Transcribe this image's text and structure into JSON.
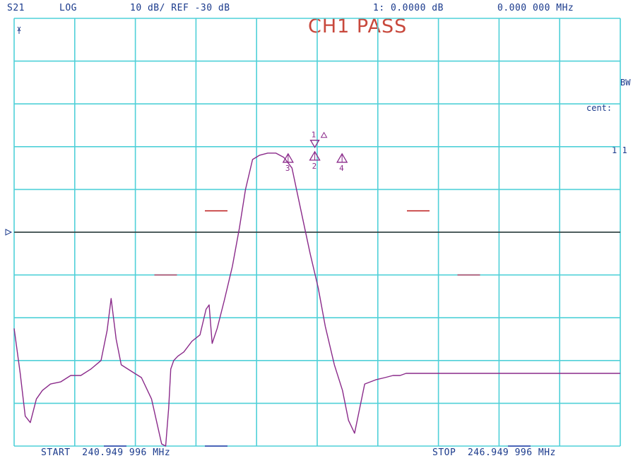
{
  "header": {
    "param": "S21",
    "format": "LOG",
    "scale": "10 dB/ REF -30 dB",
    "marker_readout": "1: 0.0000 dB",
    "marker_freq": "0.000 000 MHz"
  },
  "status": {
    "text": "CH1 PASS",
    "color": "#c8483c"
  },
  "side_labels": {
    "bw": "BW",
    "cent": "cent:",
    "one": "1 1"
  },
  "footer": {
    "start": "START  240.949 996 MHz",
    "stop": "STOP  246.949 996 MHz"
  },
  "markers": [
    {
      "label": "1",
      "x_fraction": 0.496,
      "level_db": -8.5
    },
    {
      "label": "2",
      "x_fraction": 0.496,
      "level_db": -11.5
    },
    {
      "label": "3",
      "x_fraction": 0.452,
      "level_db": -12.0
    },
    {
      "label": "4",
      "x_fraction": 0.541,
      "level_db": -12.0
    }
  ],
  "colors": {
    "grid": "#4fd0d8",
    "trace": "#8a2a8a",
    "reference_line": "#303030",
    "limit_upper": "#c02a2a",
    "limit_lower": "#b04a6a",
    "limit_bottom": "#2a3aa8",
    "text": "#1a3a8c"
  },
  "chart_data": {
    "type": "line",
    "title": "",
    "xlabel": "",
    "ylabel": "",
    "x_range_mhz": [
      240.949996,
      246.949996
    ],
    "reference_level_db": -30,
    "scale_db_per_div": 10,
    "ylim": [
      -80,
      20
    ],
    "grid": true,
    "series": [
      {
        "name": "S21",
        "x": [
          240.95,
          241.01,
          241.06,
          241.11,
          241.17,
          241.23,
          241.31,
          241.41,
          241.51,
          241.61,
          241.71,
          241.81,
          241.87,
          241.91,
          241.96,
          242.01,
          242.11,
          242.21,
          242.31,
          242.41,
          242.45,
          242.48,
          242.5,
          242.53,
          242.57,
          242.63,
          242.71,
          242.79,
          242.85,
          242.88,
          242.91,
          242.96,
          243.03,
          243.11,
          243.18,
          243.24,
          243.31,
          243.38,
          243.46,
          243.54,
          243.62,
          243.7,
          243.79,
          243.88,
          243.96,
          244.03,
          244.12,
          244.2,
          244.26,
          244.32,
          244.42,
          244.53,
          244.62,
          244.7,
          244.77,
          244.83,
          244.87,
          244.9,
          244.95,
          245.05,
          245.15,
          245.35,
          245.55,
          245.75,
          245.95,
          246.15,
          246.35,
          246.55,
          246.75,
          246.949
        ],
        "y": [
          -52.5,
          -63.0,
          -73.0,
          -74.5,
          -69.0,
          -67.0,
          -65.5,
          -65.0,
          -63.5,
          -63.5,
          -62.0,
          -60.0,
          -53.0,
          -45.5,
          -55.0,
          -61.0,
          -62.5,
          -64.0,
          -69.0,
          -79.5,
          -80.0,
          -71.0,
          -62.0,
          -60.0,
          -59.0,
          -58.0,
          -55.5,
          -54.0,
          -48.0,
          -47.0,
          -56.0,
          -52.5,
          -46.0,
          -38.0,
          -29.0,
          -20.0,
          -13.0,
          -12.0,
          -11.5,
          -11.5,
          -12.5,
          -15.0,
          -25.0,
          -35.0,
          -43.0,
          -52.0,
          -61.0,
          -67.0,
          -74.0,
          -77.0,
          -65.5,
          -64.5,
          -64.0,
          -63.5,
          -63.5,
          -63.0,
          -63.0,
          -63.0,
          -63.0,
          -63.0,
          -63.0,
          -63.0,
          -63.0,
          -63.0,
          -63.0,
          -63.0,
          -63.0,
          -63.0,
          -63.0,
          -63.0
        ]
      }
    ],
    "limit_lines": [
      {
        "name": "upper",
        "level_db": -25.0,
        "x_ranges_mhz": [
          [
            240.949996,
            242.949996
          ],
          [
            244.949996,
            246.949996
          ]
        ]
      },
      {
        "name": "lower",
        "level_db": -40.0,
        "x_ranges_mhz": [
          [
            240.949996,
            242.449996
          ],
          [
            245.449996,
            246.949996
          ]
        ]
      },
      {
        "name": "bottom",
        "level_db": -80.0,
        "x_ranges_mhz": [
          [
            240.949996,
            241.949996
          ],
          [
            242.949996,
            244.949996
          ],
          [
            245.949996,
            246.949996
          ]
        ]
      }
    ]
  }
}
